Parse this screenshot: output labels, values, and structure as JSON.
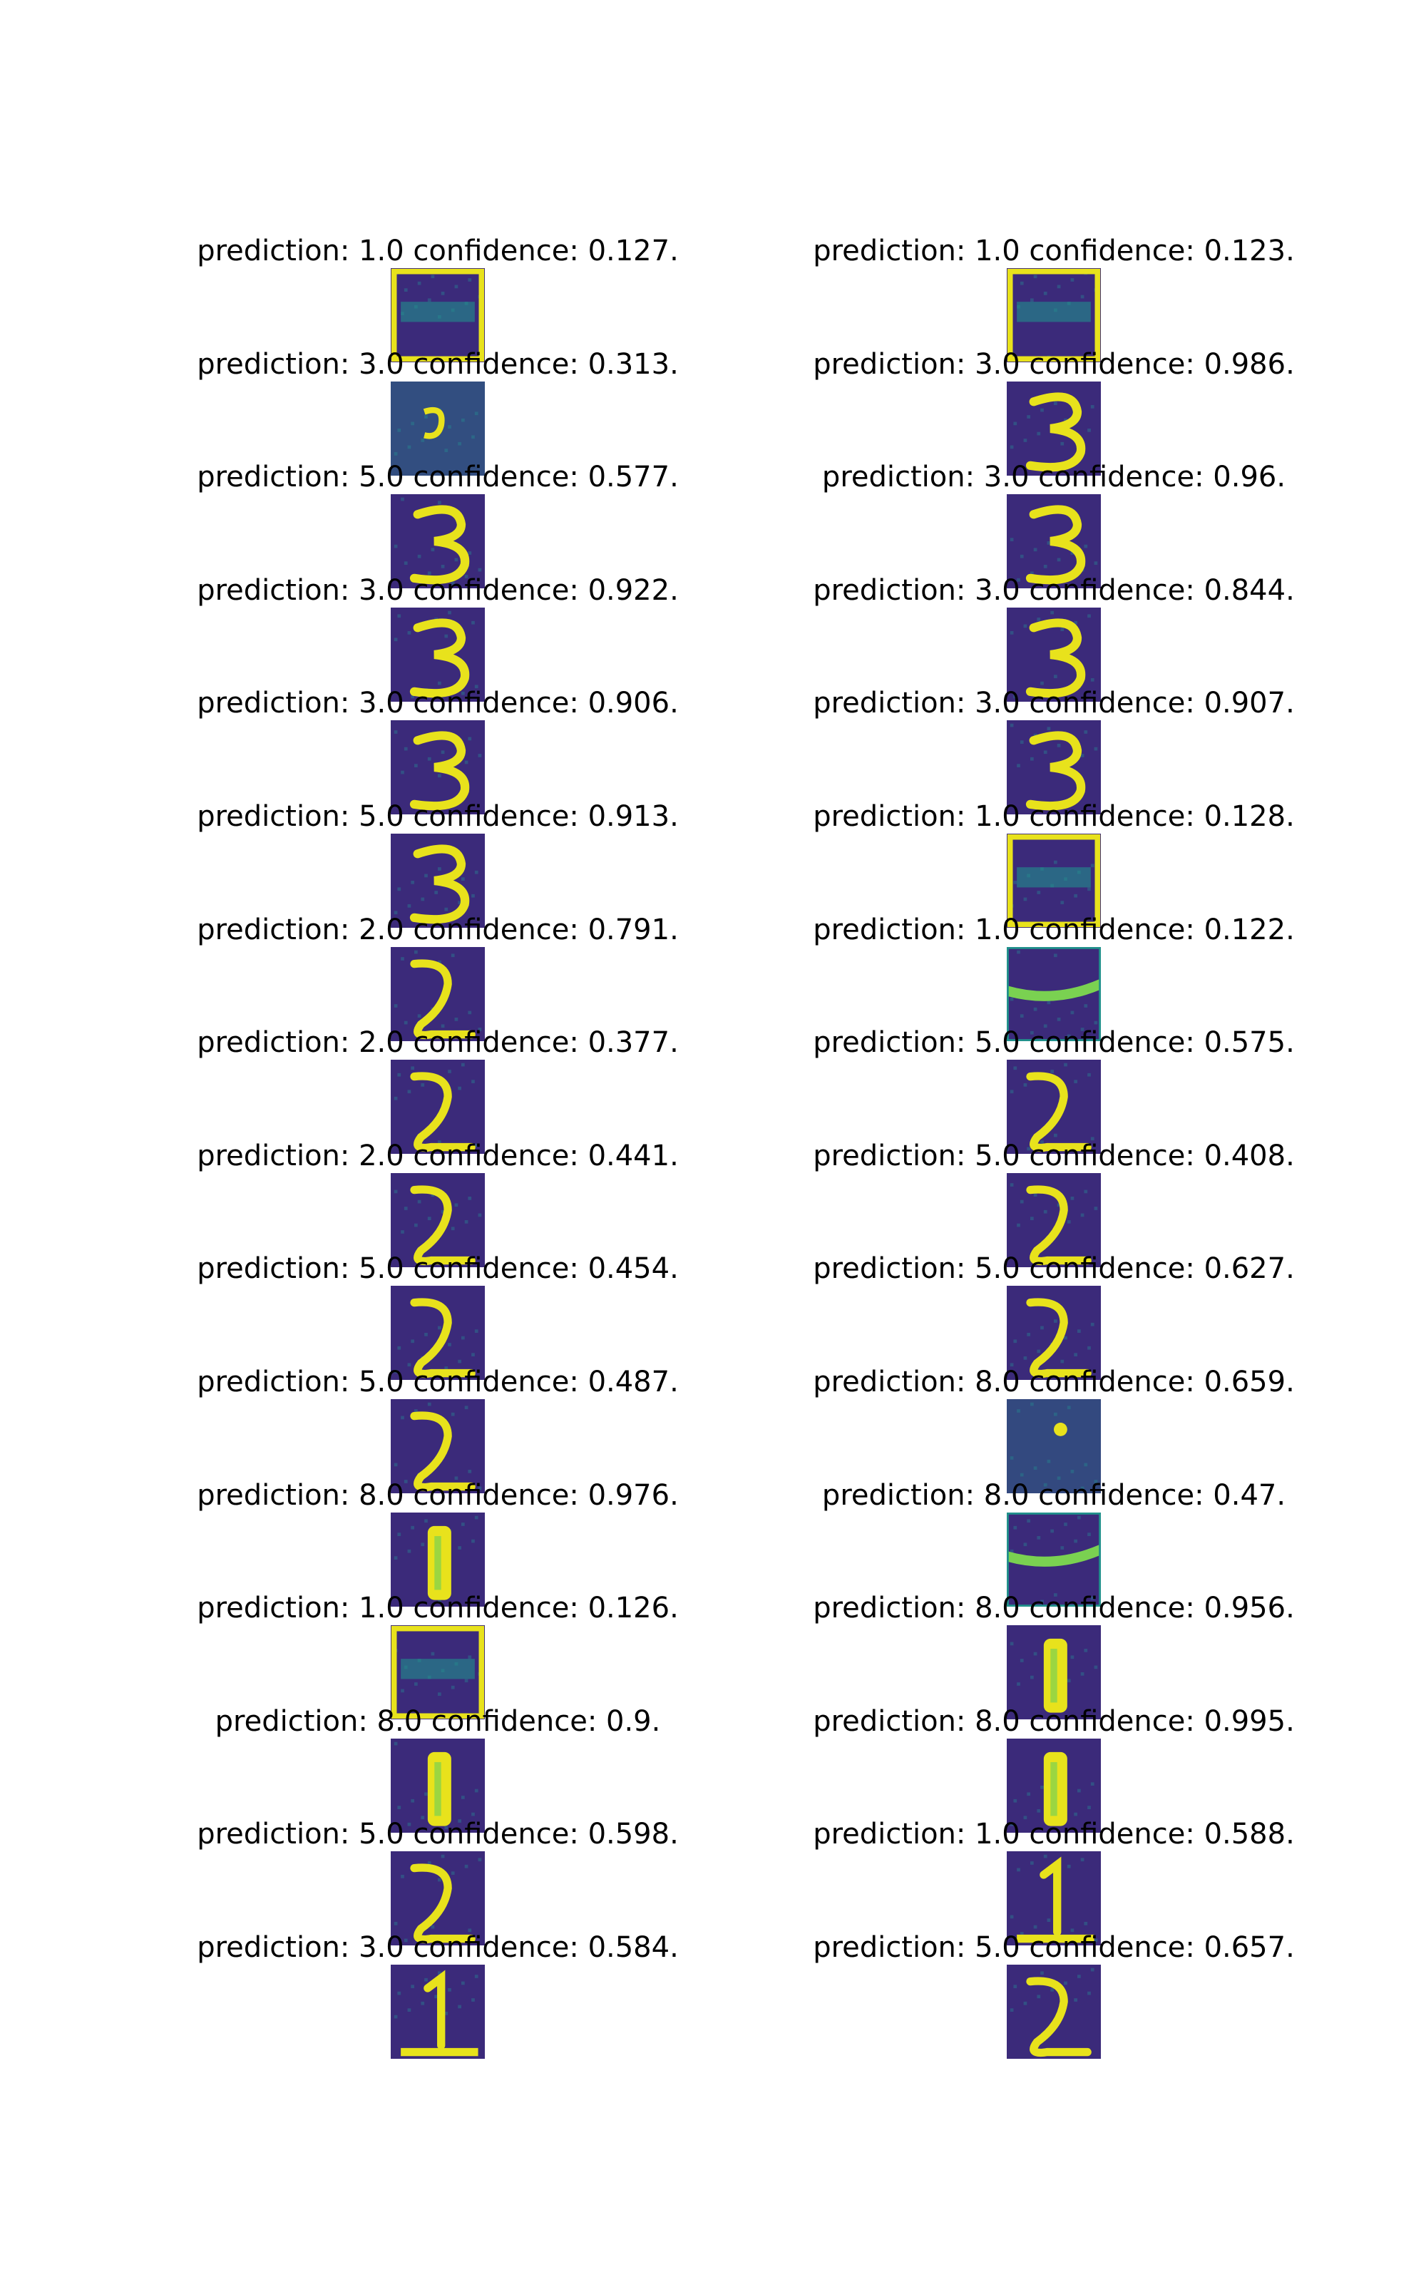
{
  "colors": {
    "background": "#ffffff",
    "text": "#000000",
    "thumb_dark": "#3b2a7a",
    "thumb_mid": "#2c6f8e",
    "thumb_teal": "#21918c",
    "thumb_bright": "#e8e21c",
    "thumb_green": "#7ad151"
  },
  "columns": [
    {
      "items": [
        {
          "label": "prediction: 1.0 confidence: 0.127.",
          "glyph": "noise-box"
        },
        {
          "label": "prediction: 3.0 confidence: 0.313.",
          "glyph": "noise-3"
        },
        {
          "label": "prediction: 5.0 confidence: 0.577.",
          "glyph": "3"
        },
        {
          "label": "prediction: 3.0 confidence: 0.922.",
          "glyph": "3"
        },
        {
          "label": "prediction: 3.0 confidence: 0.906.",
          "glyph": "3"
        },
        {
          "label": "prediction: 5.0 confidence: 0.913.",
          "glyph": "3"
        },
        {
          "label": "prediction: 2.0 confidence: 0.791.",
          "glyph": "2"
        },
        {
          "label": "prediction: 2.0 confidence: 0.377.",
          "glyph": "2"
        },
        {
          "label": "prediction: 2.0 confidence: 0.441.",
          "glyph": "2"
        },
        {
          "label": "prediction: 5.0 confidence: 0.454.",
          "glyph": "2"
        },
        {
          "label": "prediction: 5.0 confidence: 0.487.",
          "glyph": "2"
        },
        {
          "label": "prediction: 8.0 confidence: 0.976.",
          "glyph": "1-bar"
        },
        {
          "label": "prediction: 1.0 confidence: 0.126.",
          "glyph": "noise-box"
        },
        {
          "label": "prediction: 8.0 confidence: 0.9.",
          "glyph": "1-bar"
        },
        {
          "label": "prediction: 5.0 confidence: 0.598.",
          "glyph": "2"
        },
        {
          "label": "prediction: 3.0 confidence: 0.584.",
          "glyph": "1"
        }
      ]
    },
    {
      "items": [
        {
          "label": "prediction: 1.0 confidence: 0.123.",
          "glyph": "noise-box"
        },
        {
          "label": "prediction: 3.0 confidence: 0.986.",
          "glyph": "3"
        },
        {
          "label": "prediction: 3.0 confidence: 0.96.",
          "glyph": "3"
        },
        {
          "label": "prediction: 3.0 confidence: 0.844.",
          "glyph": "3"
        },
        {
          "label": "prediction: 3.0 confidence: 0.907.",
          "glyph": "3"
        },
        {
          "label": "prediction: 1.0 confidence: 0.128.",
          "glyph": "noise-box"
        },
        {
          "label": "prediction: 1.0 confidence: 0.122.",
          "glyph": "noise-stripe"
        },
        {
          "label": "prediction: 5.0 confidence: 0.575.",
          "glyph": "2"
        },
        {
          "label": "prediction: 5.0 confidence: 0.408.",
          "glyph": "2"
        },
        {
          "label": "prediction: 5.0 confidence: 0.627.",
          "glyph": "2"
        },
        {
          "label": "prediction: 8.0 confidence: 0.659.",
          "glyph": "noise-dot"
        },
        {
          "label": "prediction: 8.0 confidence: 0.47.",
          "glyph": "noise-stripe"
        },
        {
          "label": "prediction: 8.0 confidence: 0.956.",
          "glyph": "1-bar"
        },
        {
          "label": "prediction: 8.0 confidence: 0.995.",
          "glyph": "1-bar"
        },
        {
          "label": "prediction: 1.0 confidence: 0.588.",
          "glyph": "1"
        },
        {
          "label": "prediction: 5.0 confidence: 0.657.",
          "glyph": "2"
        }
      ]
    }
  ]
}
